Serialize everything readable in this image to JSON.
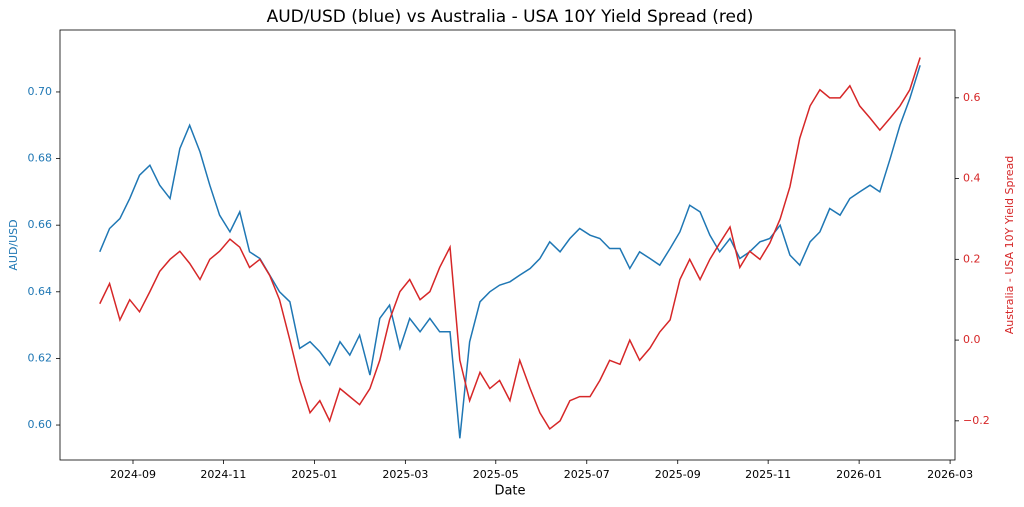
{
  "chart_data": {
    "type": "line",
    "title": "AUD/USD (blue) vs Australia - USA 10Y Yield Spread (red)",
    "xlabel": "Date",
    "ylabel": "AUD/USD",
    "y2label": "Australia - USA 10Y Yield Spread",
    "x": [
      2024.606,
      2024.624,
      2024.643,
      2024.661,
      2024.679,
      2024.698,
      2024.716,
      2024.735,
      2024.753,
      2024.771,
      2024.79,
      2024.808,
      2024.826,
      2024.845,
      2024.863,
      2024.881,
      2024.9,
      2024.918,
      2024.936,
      2024.955,
      2024.973,
      2024.992,
      2025.01,
      2025.028,
      2025.047,
      2025.065,
      2025.083,
      2025.102,
      2025.12,
      2025.138,
      2025.157,
      2025.175,
      2025.194,
      2025.212,
      2025.23,
      2025.249,
      2025.267,
      2025.285,
      2025.304,
      2025.322,
      2025.34,
      2025.359,
      2025.377,
      2025.396,
      2025.414,
      2025.432,
      2025.451,
      2025.469,
      2025.487,
      2025.506,
      2025.524,
      2025.542,
      2025.561,
      2025.579,
      2025.597,
      2025.616,
      2025.634,
      2025.653,
      2025.671,
      2025.689,
      2025.708,
      2025.726,
      2025.744,
      2025.763,
      2025.781,
      2025.799,
      2025.818,
      2025.836,
      2025.855,
      2025.873,
      2025.891,
      2025.91,
      2025.928,
      2025.946,
      2025.965,
      2025.983,
      2026.001,
      2026.02,
      2026.038,
      2026.057,
      2026.075,
      2026.093,
      2026.112
    ],
    "series": [
      {
        "name": "AUD/USD",
        "color": "#1f77b4",
        "values": [
          0.652,
          0.659,
          0.662,
          0.668,
          0.675,
          0.678,
          0.672,
          0.668,
          0.683,
          0.69,
          0.682,
          0.672,
          0.663,
          0.658,
          0.664,
          0.652,
          0.65,
          0.645,
          0.64,
          0.637,
          0.623,
          0.625,
          0.622,
          0.618,
          0.625,
          0.621,
          0.627,
          0.615,
          0.632,
          0.636,
          0.623,
          0.632,
          0.628,
          0.632,
          0.628,
          0.628,
          0.596,
          0.625,
          0.637,
          0.64,
          0.642,
          0.643,
          0.645,
          0.647,
          0.65,
          0.655,
          0.652,
          0.656,
          0.659,
          0.657,
          0.656,
          0.653,
          0.653,
          0.647,
          0.652,
          0.65,
          0.648,
          0.653,
          0.658,
          0.666,
          0.664,
          0.657,
          0.652,
          0.656,
          0.65,
          0.652,
          0.655,
          0.656,
          0.66,
          0.651,
          0.648,
          0.655,
          0.658,
          0.665,
          0.663,
          0.668,
          0.67,
          0.672,
          0.67,
          0.68,
          0.69,
          0.698,
          0.708
        ]
      },
      {
        "name": "Australia - USA 10Y Yield Spread",
        "color": "#d62728",
        "axis": "y2",
        "values": [
          0.09,
          0.14,
          0.05,
          0.1,
          0.07,
          0.12,
          0.17,
          0.2,
          0.22,
          0.19,
          0.15,
          0.2,
          0.22,
          0.25,
          0.23,
          0.18,
          0.2,
          0.16,
          0.1,
          0.0,
          -0.1,
          -0.18,
          -0.15,
          -0.2,
          -0.12,
          -0.14,
          -0.16,
          -0.12,
          -0.05,
          0.05,
          0.12,
          0.15,
          0.1,
          0.12,
          0.18,
          0.23,
          -0.05,
          -0.15,
          -0.08,
          -0.12,
          -0.1,
          -0.15,
          -0.05,
          -0.12,
          -0.18,
          -0.22,
          -0.2,
          -0.15,
          -0.14,
          -0.14,
          -0.1,
          -0.05,
          -0.06,
          0.0,
          -0.05,
          -0.02,
          0.02,
          0.05,
          0.15,
          0.2,
          0.15,
          0.2,
          0.24,
          0.28,
          0.18,
          0.22,
          0.2,
          0.24,
          0.3,
          0.38,
          0.5,
          0.58,
          0.62,
          0.6,
          0.6,
          0.63,
          0.58,
          0.55,
          0.52,
          0.55,
          0.58,
          0.62,
          0.7
        ]
      }
    ],
    "xlim": [
      2024.533,
      2026.176
    ],
    "xticks": [
      {
        "value": 2024.667,
        "label": "2024-09"
      },
      {
        "value": 2024.833,
        "label": "2024-11"
      },
      {
        "value": 2025.0,
        "label": "2025-01"
      },
      {
        "value": 2025.167,
        "label": "2025-03"
      },
      {
        "value": 2025.333,
        "label": "2025-05"
      },
      {
        "value": 2025.5,
        "label": "2025-07"
      },
      {
        "value": 2025.667,
        "label": "2025-09"
      },
      {
        "value": 2025.833,
        "label": "2025-11"
      },
      {
        "value": 2026.0,
        "label": "2026-01"
      },
      {
        "value": 2026.167,
        "label": "2026-03"
      }
    ],
    "ylim": [
      0.5895,
      0.7186
    ],
    "yticks": [
      {
        "value": 0.6,
        "label": "0.60"
      },
      0.62,
      0.64,
      0.66,
      0.68,
      {
        "value": 0.7,
        "label": "0.70"
      }
    ],
    "y2lim": [
      -0.297,
      0.768
    ],
    "y2ticks": [
      {
        "value": -0.2,
        "label": "−0.2"
      },
      {
        "value": 0,
        "label": "0.0"
      },
      0.2,
      0.4,
      0.6
    ],
    "grid": false
  }
}
